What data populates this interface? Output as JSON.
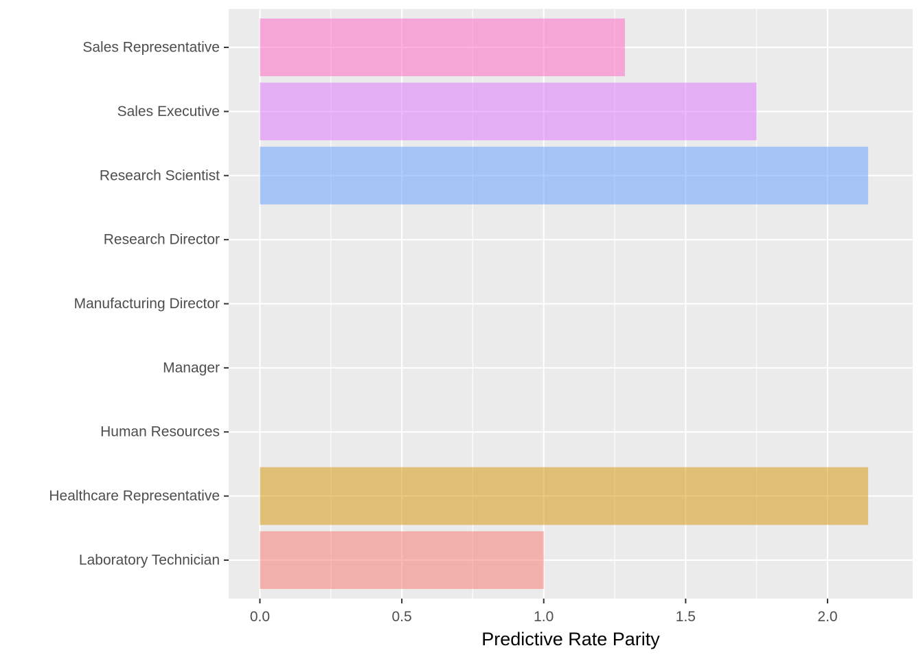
{
  "chart_data": {
    "type": "bar",
    "orientation": "horizontal",
    "xlabel": "Predictive Rate Parity",
    "ylabel": "",
    "xlim": [
      -0.11,
      2.3
    ],
    "x_ticks": [
      {
        "value": 0.0,
        "label": "0.0"
      },
      {
        "value": 0.5,
        "label": "0.5"
      },
      {
        "value": 1.0,
        "label": "1.0"
      },
      {
        "value": 1.5,
        "label": "1.5"
      },
      {
        "value": 2.0,
        "label": "2.0"
      }
    ],
    "categories": [
      "Laboratory Technician",
      "Healthcare Representative",
      "Human Resources",
      "Manager",
      "Manufacturing Director",
      "Research Director",
      "Research Scientist",
      "Sales Executive",
      "Sales Representative"
    ],
    "values": [
      1.0,
      2.143,
      null,
      null,
      null,
      null,
      2.143,
      1.75,
      1.286
    ],
    "colors": [
      "#F8766D",
      "#D39200",
      "#93AA00",
      "#00BA38",
      "#00C19F",
      "#00B9E3",
      "#619CFF",
      "#DB72FB",
      "#FF61C3"
    ],
    "bar_opacity": 0.5,
    "panel_background": "#EBEBEB",
    "grid": true,
    "legend": "none"
  }
}
